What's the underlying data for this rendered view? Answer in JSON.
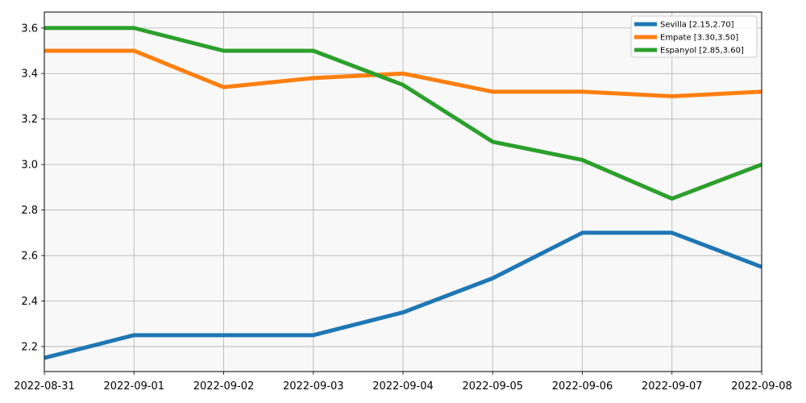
{
  "chart_data": {
    "type": "line",
    "title": "",
    "xlabel": "",
    "ylabel": "",
    "x": [
      "2022-08-31",
      "2022-09-01",
      "2022-09-02",
      "2022-09-03",
      "2022-09-04",
      "2022-09-05",
      "2022-09-06",
      "2022-09-07",
      "2022-09-08"
    ],
    "series": [
      {
        "name": "Sevilla [2.15,2.70]",
        "color": "#1f77b4",
        "values": [
          2.15,
          2.25,
          2.25,
          2.25,
          2.35,
          2.5,
          2.7,
          2.7,
          2.55
        ]
      },
      {
        "name": "Empate [3.30,3.50]",
        "color": "#ff7f0e",
        "values": [
          3.5,
          3.5,
          3.34,
          3.38,
          3.4,
          3.32,
          3.32,
          3.3,
          3.32
        ]
      },
      {
        "name": "Espanyol [2.85,3.60]",
        "color": "#2ca02c",
        "values": [
          3.6,
          3.6,
          3.5,
          3.5,
          3.35,
          3.1,
          3.02,
          2.85,
          3.0
        ]
      }
    ],
    "ylim": [
      2.09,
      3.67
    ],
    "yticks": [
      "2.2",
      "2.4",
      "2.6",
      "2.8",
      "3.0",
      "3.2",
      "3.4",
      "3.6"
    ],
    "grid": true,
    "legend": "top-right",
    "background": "#f8f8f8"
  }
}
